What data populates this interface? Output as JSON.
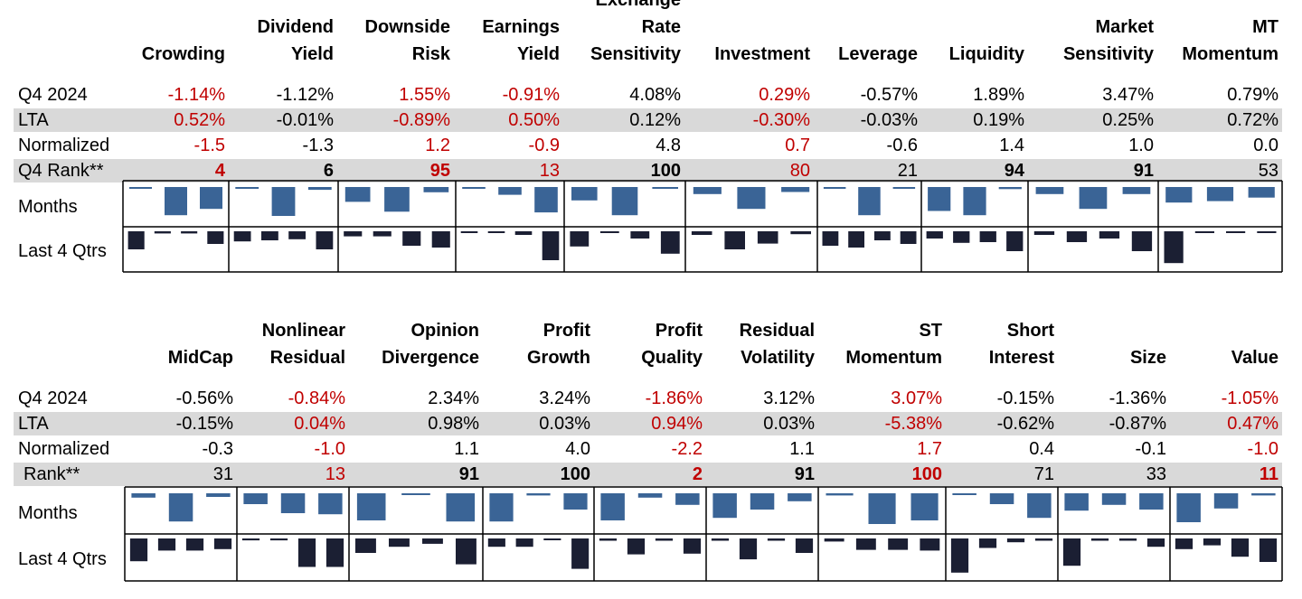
{
  "row_labels": {
    "q4": "Q4 2024",
    "lta": "LTA",
    "normalized": "Normalized",
    "rank_top": "Q4 Rank**",
    "rank_bottom": "Rank**",
    "months": "Months",
    "last4": "Last 4 Qtrs"
  },
  "colors": {
    "negative": "#c00000",
    "months_bar": "#3a6496",
    "qtrs_bar": "#1b1f33",
    "band": "#d9d9d9"
  },
  "chart_data": [
    {
      "type": "table",
      "panel": "top",
      "factors": [
        {
          "header": [
            "",
            "Crowding"
          ],
          "q4": "-1.14%",
          "lta": "0.52%",
          "normalized": "-1.5",
          "rank": "4",
          "red": true,
          "bold": true,
          "months": [
            0.05,
            0.8,
            0.62
          ],
          "qtrs": [
            0.5,
            0.06,
            0.06,
            0.35
          ]
        },
        {
          "header": [
            "Dividend",
            "Yield"
          ],
          "q4": "-1.12%",
          "lta": "-0.01%",
          "normalized": "-1.3",
          "rank": "6",
          "red": false,
          "bold": true,
          "months": [
            0.02,
            0.82,
            0.08
          ],
          "qtrs": [
            0.28,
            0.25,
            0.22,
            0.5
          ]
        },
        {
          "header": [
            "Downside",
            "Risk"
          ],
          "q4": "1.55%",
          "lta": "-0.89%",
          "normalized": "1.2",
          "rank": "95",
          "red": true,
          "bold": true,
          "months": [
            0.42,
            0.7,
            0.15
          ],
          "qtrs": [
            0.14,
            0.14,
            0.4,
            0.45
          ]
        },
        {
          "header": [
            "Earnings",
            "Yield"
          ],
          "q4": "-0.91%",
          "lta": "0.50%",
          "normalized": "-0.9",
          "rank": "13",
          "red": true,
          "bold": false,
          "months": [
            0.05,
            0.22,
            0.72
          ],
          "qtrs": [
            0.04,
            0.04,
            0.1,
            0.8
          ]
        },
        {
          "header": [
            "Exchange",
            "Rate",
            "Sensitivity"
          ],
          "q4": "4.08%",
          "lta": "0.12%",
          "normalized": "4.8",
          "rank": "100",
          "red": false,
          "bold": true,
          "months": [
            0.38,
            0.8,
            0.04
          ],
          "qtrs": [
            0.42,
            0.02,
            0.2,
            0.62
          ]
        },
        {
          "header": [
            "",
            "Investment"
          ],
          "q4": "0.29%",
          "lta": "-0.30%",
          "normalized": "0.7",
          "rank": "80",
          "red": true,
          "bold": false,
          "months": [
            0.2,
            0.62,
            0.14
          ],
          "qtrs": [
            0.1,
            0.5,
            0.34,
            0.08
          ]
        },
        {
          "header": [
            "",
            "Leverage"
          ],
          "q4": "-0.57%",
          "lta": "-0.03%",
          "normalized": "-0.6",
          "rank": "21",
          "red": false,
          "bold": false,
          "months": [
            0.02,
            0.8,
            0.03
          ],
          "qtrs": [
            0.4,
            0.45,
            0.25,
            0.35
          ]
        },
        {
          "header": [
            "",
            "Liquidity"
          ],
          "q4": "1.89%",
          "lta": "0.19%",
          "normalized": "1.4",
          "rank": "94",
          "red": false,
          "bold": true,
          "months": [
            0.68,
            0.8,
            0.06
          ],
          "qtrs": [
            0.2,
            0.32,
            0.3,
            0.55
          ]
        },
        {
          "header": [
            "Market",
            "Sensitivity"
          ],
          "q4": "3.47%",
          "lta": "0.25%",
          "normalized": "1.0",
          "rank": "91",
          "red": false,
          "bold": true,
          "months": [
            0.2,
            0.62,
            0.2
          ],
          "qtrs": [
            0.1,
            0.3,
            0.2,
            0.55
          ]
        },
        {
          "header": [
            "MT",
            "Momentum"
          ],
          "q4": "0.79%",
          "lta": "0.72%",
          "normalized": "0.0",
          "rank": "53",
          "red": false,
          "bold": false,
          "months": [
            0.44,
            0.4,
            0.3
          ],
          "qtrs": [
            0.88,
            0.03,
            0.03,
            0.03
          ]
        }
      ]
    },
    {
      "type": "table",
      "panel": "bottom",
      "factors": [
        {
          "header": [
            "",
            "MidCap"
          ],
          "q4": "-0.56%",
          "lta": "-0.15%",
          "normalized": "-0.3",
          "rank": "31",
          "red": false,
          "bold": false,
          "months": [
            0.12,
            0.78,
            0.1
          ],
          "qtrs": [
            0.6,
            0.32,
            0.32,
            0.28
          ]
        },
        {
          "header": [
            "Nonlinear",
            "Residual"
          ],
          "q4": "-0.84%",
          "lta": "0.04%",
          "normalized": "-1.0",
          "rank": "13",
          "red": true,
          "bold": false,
          "months": [
            0.3,
            0.55,
            0.58
          ],
          "qtrs": [
            0.05,
            0.05,
            0.75,
            0.75
          ]
        },
        {
          "header": [
            "Opinion",
            "Divergence"
          ],
          "q4": "2.34%",
          "lta": "0.98%",
          "normalized": "1.1",
          "rank": "91",
          "red": false,
          "bold": true,
          "months": [
            0.75,
            0.04,
            0.78
          ],
          "qtrs": [
            0.38,
            0.22,
            0.14,
            0.68
          ]
        },
        {
          "header": [
            "Profit",
            "Growth"
          ],
          "q4": "3.24%",
          "lta": "0.03%",
          "normalized": "4.0",
          "rank": "100",
          "red": false,
          "bold": true,
          "months": [
            0.78,
            0.06,
            0.45
          ],
          "qtrs": [
            0.22,
            0.22,
            0.04,
            0.8
          ]
        },
        {
          "header": [
            "Profit",
            "Quality"
          ],
          "q4": "-1.86%",
          "lta": "0.94%",
          "normalized": "-2.2",
          "rank": "2",
          "red": true,
          "bold": true,
          "months": [
            0.75,
            0.12,
            0.32
          ],
          "qtrs": [
            0.06,
            0.42,
            0.06,
            0.4
          ]
        },
        {
          "header": [
            "Residual",
            "Volatility"
          ],
          "q4": "3.12%",
          "lta": "0.03%",
          "normalized": "1.1",
          "rank": "91",
          "red": false,
          "bold": true,
          "months": [
            0.68,
            0.45,
            0.22
          ],
          "qtrs": [
            0.06,
            0.55,
            0.06,
            0.38
          ]
        },
        {
          "header": [
            "ST",
            "Momentum"
          ],
          "q4": "3.07%",
          "lta": "-5.38%",
          "normalized": "1.7",
          "rank": "100",
          "red": true,
          "bold": true,
          "months": [
            0.06,
            0.85,
            0.75
          ],
          "qtrs": [
            0.08,
            0.3,
            0.3,
            0.32
          ]
        },
        {
          "header": [
            "Short",
            "Interest"
          ],
          "q4": "-0.15%",
          "lta": "-0.62%",
          "normalized": "0.4",
          "rank": "71",
          "red": false,
          "bold": false,
          "months": [
            0.04,
            0.3,
            0.68
          ],
          "qtrs": [
            0.9,
            0.25,
            0.1,
            0.06
          ]
        },
        {
          "header": [
            "",
            "Size"
          ],
          "q4": "-1.36%",
          "lta": "-0.87%",
          "normalized": "-0.1",
          "rank": "33",
          "red": false,
          "bold": false,
          "months": [
            0.48,
            0.32,
            0.45
          ],
          "qtrs": [
            0.72,
            0.06,
            0.06,
            0.22
          ]
        },
        {
          "header": [
            "",
            "Value"
          ],
          "q4": "-1.05%",
          "lta": "0.47%",
          "normalized": "-1.0",
          "rank": "11",
          "red": true,
          "bold": true,
          "months": [
            0.8,
            0.42,
            0.06
          ],
          "qtrs": [
            0.28,
            0.18,
            0.48,
            0.62
          ]
        }
      ]
    }
  ]
}
